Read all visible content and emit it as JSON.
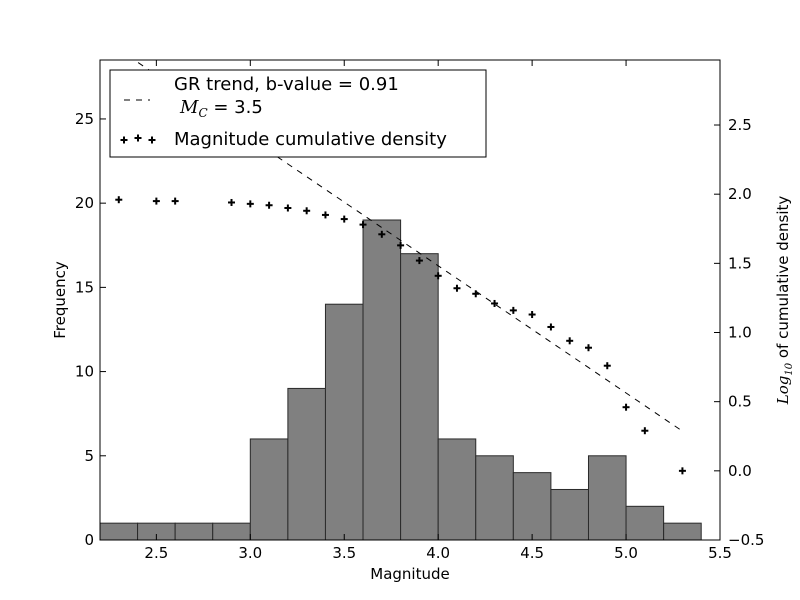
{
  "chart_data": {
    "type": "bar",
    "title": "",
    "xlabel": "Magnitude",
    "ylabel": "Frequency",
    "y2label": "Log10 of cumulative density",
    "xlim": [
      2.2,
      5.5
    ],
    "ylim": [
      0,
      28.5
    ],
    "y2lim": [
      -0.5,
      2.97
    ],
    "grid": false,
    "legend_position": "top-left",
    "x_ticks": [
      2.5,
      3.0,
      3.5,
      4.0,
      4.5,
      5.0,
      5.5
    ],
    "x_tick_labels": [
      "2.5",
      "3.0",
      "3.5",
      "4.0",
      "4.5",
      "5.0",
      "5.5"
    ],
    "y_ticks": [
      0,
      5,
      10,
      15,
      20,
      25
    ],
    "y_tick_labels": [
      "0",
      "5",
      "10",
      "15",
      "20",
      "25"
    ],
    "y2_ticks": [
      -0.5,
      0.0,
      0.5,
      1.0,
      1.5,
      2.0,
      2.5
    ],
    "y2_tick_labels": [
      "−0.5",
      "0.0",
      "0.5",
      "1.0",
      "1.5",
      "2.0",
      "2.5"
    ],
    "histogram": {
      "bin_width": 0.2,
      "bin_starts": [
        2.2,
        2.4,
        2.6,
        2.8,
        3.0,
        3.2,
        3.4,
        3.6,
        3.8,
        4.0,
        4.2,
        4.4,
        4.6,
        4.8,
        5.0,
        5.2
      ],
      "values": [
        1,
        1,
        1,
        1,
        6,
        9,
        14,
        19,
        17,
        6,
        5,
        4,
        3,
        5,
        2,
        1
      ],
      "color": "#808080"
    },
    "series": [
      {
        "name": "GR trend, b-value = 0.91",
        "name_line2_symbol": "M",
        "name_line2_subscript": "C",
        "name_line2_value": " = 3.5",
        "type": "line",
        "style": "dashed",
        "x": [
          2.35,
          5.3
        ],
        "y": [
          3.0,
          0.287
        ]
      },
      {
        "name": "Magnitude cumulative density",
        "type": "scatter",
        "marker": "plus",
        "x": [
          2.3,
          2.5,
          2.6,
          2.9,
          3.0,
          3.1,
          3.2,
          3.3,
          3.4,
          3.5,
          3.6,
          3.7,
          3.8,
          3.9,
          4.0,
          4.1,
          4.2,
          4.3,
          4.4,
          4.5,
          4.6,
          4.7,
          4.8,
          4.9,
          5.0,
          5.1,
          5.3
        ],
        "y": [
          1.96,
          1.95,
          1.95,
          1.94,
          1.93,
          1.92,
          1.9,
          1.88,
          1.85,
          1.82,
          1.78,
          1.71,
          1.63,
          1.52,
          1.41,
          1.32,
          1.28,
          1.21,
          1.16,
          1.13,
          1.04,
          0.94,
          0.89,
          0.76,
          0.46,
          0.29,
          0.0
        ]
      }
    ]
  }
}
